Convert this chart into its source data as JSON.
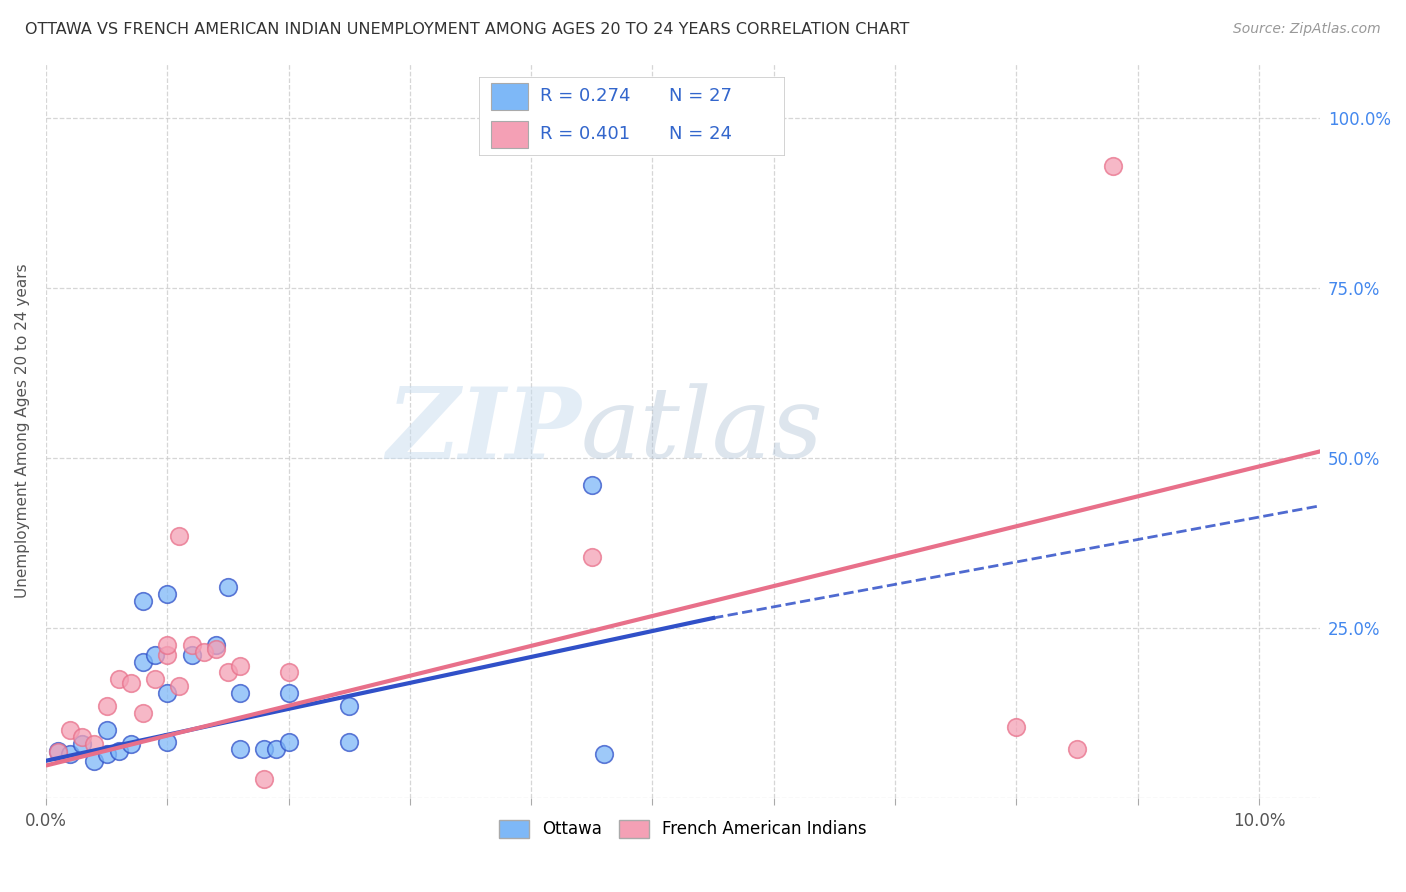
{
  "title": "OTTAWA VS FRENCH AMERICAN INDIAN UNEMPLOYMENT AMONG AGES 20 TO 24 YEARS CORRELATION CHART",
  "source": "Source: ZipAtlas.com",
  "ylabel": "Unemployment Among Ages 20 to 24 years",
  "xlim": [
    0.0,
    0.105
  ],
  "ylim": [
    0.0,
    1.08
  ],
  "xticks": [
    0.0,
    0.01,
    0.02,
    0.03,
    0.04,
    0.05,
    0.06,
    0.07,
    0.08,
    0.09,
    0.1
  ],
  "yticks": [
    0.0,
    0.25,
    0.5,
    0.75,
    1.0
  ],
  "xtick_labels": [
    "0.0%",
    "",
    "",
    "",
    "",
    "",
    "",
    "",
    "",
    "",
    "10.0%"
  ],
  "right_ytick_labels": [
    "",
    "25.0%",
    "50.0%",
    "75.0%",
    "100.0%"
  ],
  "ottawa_color": "#7EB8F7",
  "french_color": "#F4A0B5",
  "trend_ottawa_color": "#3050C8",
  "trend_french_color": "#E8708A",
  "legend_r_ottawa": "R = 0.274",
  "legend_n_ottawa": "N = 27",
  "legend_r_french": "R = 0.401",
  "legend_n_french": "N = 24",
  "watermark_zip": "ZIP",
  "watermark_atlas": "atlas",
  "legend_label_ottawa": "Ottawa",
  "legend_label_french": "French American Indians",
  "ottawa_points": [
    [
      0.001,
      0.07
    ],
    [
      0.002,
      0.065
    ],
    [
      0.003,
      0.08
    ],
    [
      0.004,
      0.055
    ],
    [
      0.005,
      0.1
    ],
    [
      0.005,
      0.065
    ],
    [
      0.006,
      0.07
    ],
    [
      0.007,
      0.08
    ],
    [
      0.008,
      0.2
    ],
    [
      0.008,
      0.29
    ],
    [
      0.009,
      0.21
    ],
    [
      0.01,
      0.155
    ],
    [
      0.01,
      0.082
    ],
    [
      0.01,
      0.3
    ],
    [
      0.012,
      0.21
    ],
    [
      0.014,
      0.225
    ],
    [
      0.015,
      0.31
    ],
    [
      0.016,
      0.155
    ],
    [
      0.016,
      0.072
    ],
    [
      0.018,
      0.072
    ],
    [
      0.019,
      0.072
    ],
    [
      0.02,
      0.155
    ],
    [
      0.02,
      0.082
    ],
    [
      0.025,
      0.135
    ],
    [
      0.025,
      0.082
    ],
    [
      0.045,
      0.46
    ],
    [
      0.046,
      0.065
    ]
  ],
  "french_points": [
    [
      0.001,
      0.068
    ],
    [
      0.002,
      0.1
    ],
    [
      0.003,
      0.09
    ],
    [
      0.004,
      0.08
    ],
    [
      0.005,
      0.135
    ],
    [
      0.006,
      0.175
    ],
    [
      0.007,
      0.17
    ],
    [
      0.008,
      0.125
    ],
    [
      0.009,
      0.175
    ],
    [
      0.01,
      0.21
    ],
    [
      0.01,
      0.225
    ],
    [
      0.011,
      0.165
    ],
    [
      0.011,
      0.385
    ],
    [
      0.012,
      0.225
    ],
    [
      0.013,
      0.215
    ],
    [
      0.014,
      0.22
    ],
    [
      0.015,
      0.185
    ],
    [
      0.016,
      0.195
    ],
    [
      0.018,
      0.028
    ],
    [
      0.02,
      0.185
    ],
    [
      0.045,
      0.355
    ],
    [
      0.08,
      0.105
    ],
    [
      0.085,
      0.072
    ],
    [
      0.088,
      0.93
    ]
  ],
  "ottawa_trend_solid": [
    0.0,
    0.055,
    0.055,
    0.265
  ],
  "ottawa_trend_dashed": [
    0.055,
    0.105,
    0.265,
    0.43
  ],
  "french_trend": [
    0.0,
    0.105,
    0.048,
    0.51
  ],
  "background_color": "#FFFFFF",
  "grid_color": "#CCCCCC",
  "title_color": "#333333",
  "axis_color": "#555555",
  "right_tick_color": "#4488EE",
  "legend_text_color": "#3366CC"
}
